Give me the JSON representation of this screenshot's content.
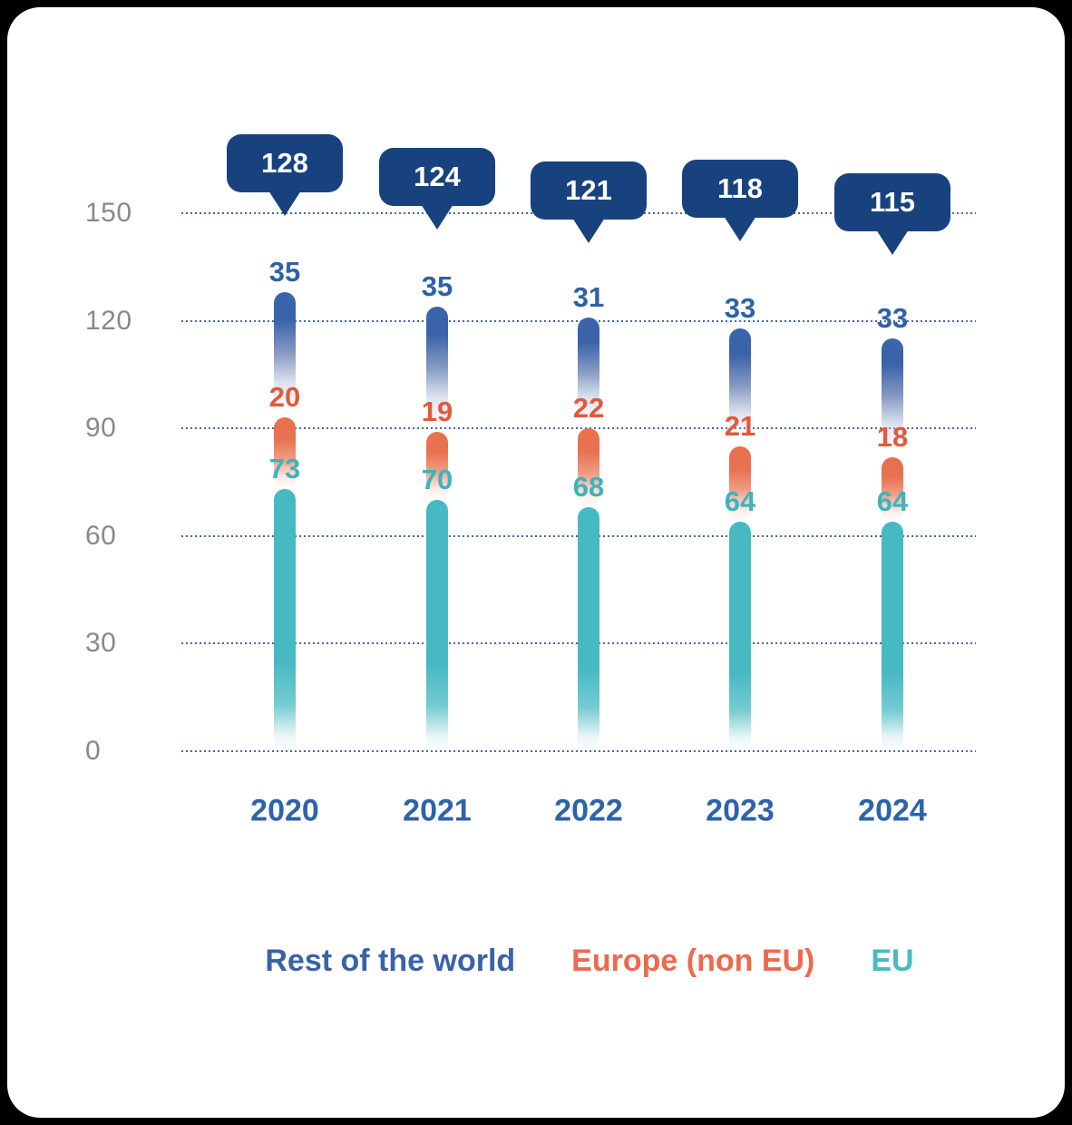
{
  "chart_data": {
    "type": "bar",
    "subtype": "stacked-pill-columns",
    "x": [
      "2020",
      "2021",
      "2022",
      "2023",
      "2024"
    ],
    "series": [
      {
        "name": "Rest of the world",
        "color": "#3b64aa",
        "label_color": "#2e62a8",
        "values": [
          35,
          35,
          31,
          33,
          33
        ]
      },
      {
        "name": "Europe (non EU)",
        "color": "#e8714f",
        "label_color": "#e2593b",
        "values": [
          20,
          19,
          22,
          21,
          18
        ]
      },
      {
        "name": "EU",
        "color": "#47b9c3",
        "label_color": "#3bb4bd",
        "values": [
          73,
          70,
          68,
          64,
          64
        ]
      }
    ],
    "stack_order_bottom_to_top": [
      "EU",
      "Europe (non EU)",
      "Rest of the world"
    ],
    "totals": [
      128,
      124,
      121,
      118,
      115
    ],
    "yticks": [
      0,
      30,
      60,
      90,
      120,
      150
    ],
    "ylim": [
      0,
      150
    ],
    "grid": "horizontal dotted",
    "legend_position": "bottom",
    "total_bubble_color": "#17427e",
    "year_label_color": "#2d63a9",
    "tick_label_color": "#87898b",
    "gridline_color": "#3a5fa8"
  },
  "legend": {
    "items": [
      {
        "label": "Rest of the world",
        "color": "#3a62a7"
      },
      {
        "label": "Europe (non EU)",
        "color": "#ec6a4e"
      },
      {
        "label": "EU",
        "color": "#44bcc0"
      }
    ]
  }
}
